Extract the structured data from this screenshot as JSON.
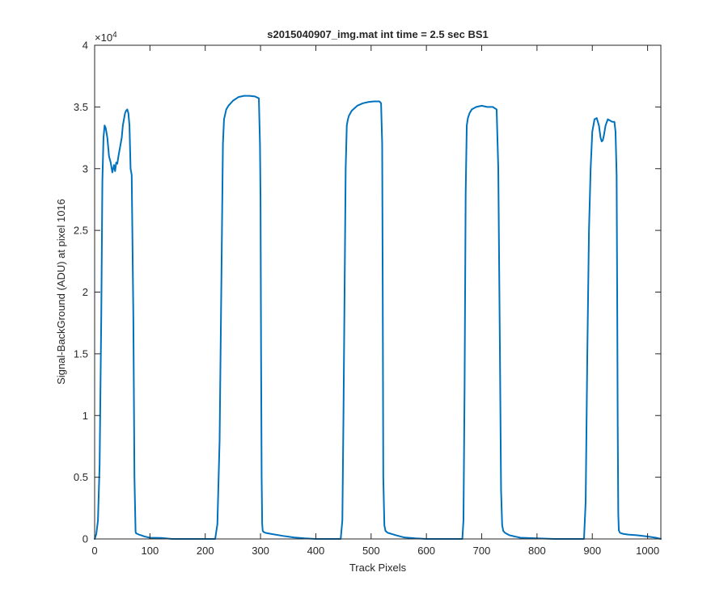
{
  "chart_data": {
    "type": "line",
    "title": "s2015040907_img.mat int time = 2.5 sec   BS1",
    "xlabel": "Track Pixels",
    "ylabel": "Signal-BackGround (ADU) at pixel 1016",
    "xlim": [
      0,
      1024
    ],
    "ylim": [
      0,
      40000
    ],
    "x_ticks": [
      0,
      100,
      200,
      300,
      400,
      500,
      600,
      700,
      800,
      900,
      1000
    ],
    "y_ticks": [
      0,
      0.5,
      1,
      1.5,
      2,
      2.5,
      3,
      3.5,
      4
    ],
    "y_multiplier_base": "×10",
    "y_multiplier_exp": "4",
    "y_scale": 10000,
    "grid": false,
    "legend": "none",
    "series": [
      {
        "color": "#0072BD",
        "x": [
          0,
          3,
          6,
          9,
          12,
          14,
          16,
          18,
          20,
          23,
          26,
          29,
          32,
          35,
          37,
          39,
          41,
          43,
          45,
          47,
          49,
          51,
          53,
          55,
          57,
          59,
          61,
          63,
          65,
          67,
          70,
          72,
          74,
          75,
          76,
          77,
          78,
          80,
          84,
          90,
          100,
          120,
          140,
          160,
          180,
          200,
          210,
          218,
          222,
          226,
          229,
          232,
          234,
          236,
          238,
          242,
          250,
          260,
          270,
          280,
          290,
          297,
          299,
          300,
          301,
          302,
          303,
          304,
          306,
          310,
          320,
          340,
          360,
          380,
          400,
          420,
          440,
          445,
          448,
          450,
          452,
          454,
          456,
          458,
          460,
          465,
          475,
          485,
          495,
          505,
          515,
          518,
          520,
          521,
          522,
          524,
          526,
          530,
          545,
          560,
          580,
          600,
          620,
          640,
          660,
          665,
          667,
          669,
          671,
          673,
          675,
          678,
          682,
          690,
          700,
          710,
          720,
          727,
          730,
          733,
          735,
          737,
          739,
          742,
          750,
          770,
          800,
          830,
          860,
          880,
          885,
          888,
          891,
          894,
          897,
          900,
          904,
          908,
          912,
          915,
          917,
          919,
          921,
          924,
          928,
          932,
          936,
          940,
          942,
          944,
          945,
          946,
          947,
          948,
          950,
          955,
          965,
          980,
          1000,
          1015,
          1024
        ],
        "y": [
          0,
          400,
          1500,
          6000,
          18000,
          29000,
          32500,
          33500,
          33300,
          32500,
          31000,
          30500,
          29700,
          30300,
          29800,
          30500,
          30400,
          31000,
          31500,
          32000,
          32500,
          33500,
          34000,
          34500,
          34700,
          34800,
          34500,
          33500,
          30000,
          29500,
          18000,
          5000,
          600,
          450,
          430,
          420,
          400,
          350,
          300,
          200,
          100,
          80,
          0,
          0,
          0,
          0,
          0,
          0,
          1200,
          8000,
          20000,
          32000,
          34000,
          34400,
          34800,
          35100,
          35500,
          35800,
          35900,
          35900,
          35850,
          35700,
          32000,
          27500,
          15000,
          5000,
          1200,
          650,
          550,
          480,
          400,
          250,
          120,
          50,
          0,
          0,
          0,
          0,
          1500,
          10000,
          20000,
          30000,
          33500,
          34000,
          34300,
          34700,
          35100,
          35300,
          35400,
          35450,
          35450,
          35300,
          32000,
          20000,
          5000,
          1100,
          650,
          500,
          300,
          120,
          50,
          0,
          0,
          0,
          0,
          0,
          1500,
          12000,
          28000,
          33500,
          34100,
          34500,
          34800,
          35000,
          35100,
          35000,
          35000,
          34800,
          30000,
          15000,
          4000,
          1100,
          650,
          500,
          300,
          100,
          50,
          0,
          0,
          0,
          0,
          3000,
          15000,
          25000,
          30000,
          33000,
          34000,
          34100,
          33500,
          32500,
          32200,
          32300,
          32700,
          33500,
          34000,
          33900,
          33800,
          33800,
          33000,
          29500,
          20000,
          9000,
          2000,
          700,
          500,
          420,
          350,
          300,
          200,
          100,
          0
        ]
      }
    ]
  }
}
